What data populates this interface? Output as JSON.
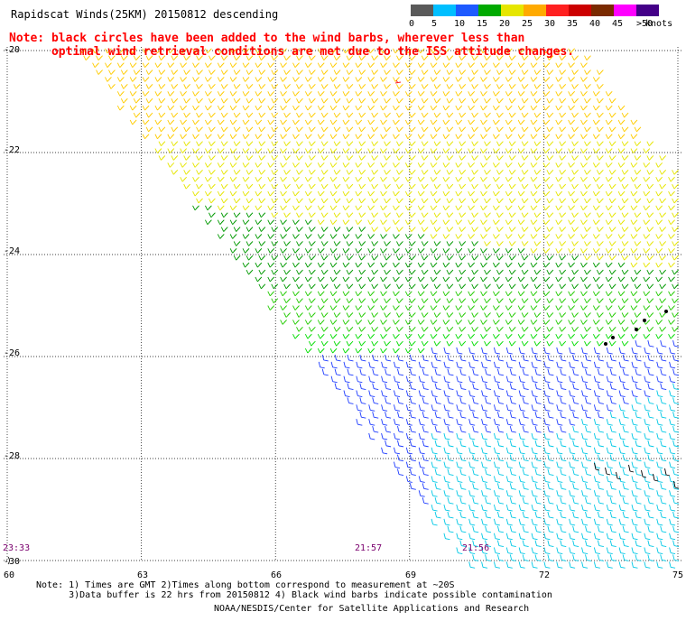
{
  "title": "Rapidscat Winds(25KM) 20150812 descending",
  "note": {
    "line1": "Note: black circles have been added to the wind barbs, wherever less than",
    "line2": "      optimal wind retrieval conditions are met due to the ISS attitude changes."
  },
  "legend": {
    "unit": "knots",
    "bins": [
      {
        "label": "0",
        "color": "#5a5a5a"
      },
      {
        "label": "5",
        "color": "#00bfff"
      },
      {
        "label": "10",
        "color": "#1e5aff"
      },
      {
        "label": "15",
        "color": "#00aa00"
      },
      {
        "label": "20",
        "color": "#e6e600"
      },
      {
        "label": "25",
        "color": "#ffaa00"
      },
      {
        "label": "30",
        "color": "#ff2020"
      },
      {
        "label": "35",
        "color": "#cc0000"
      },
      {
        "label": "40",
        "color": "#7a2a00"
      },
      {
        "label": "45",
        "color": "#ff00ff"
      },
      {
        "label": ">50",
        "color": "#440088"
      }
    ]
  },
  "axes": {
    "lat_labels": [
      "-20",
      "-22",
      "-24",
      "-26",
      "-28",
      "-30"
    ],
    "lon_labels": [
      "60",
      "63",
      "66",
      "69",
      "72",
      "75"
    ]
  },
  "times": [
    "23:33",
    "21:57",
    "21:56"
  ],
  "footer": {
    "line1": "Note: 1) Times are GMT 2)Times along bottom correspond to measurement at ~20S",
    "line2": "      3)Data buffer is 22 hrs from 20150812 4) Black wind barbs indicate possible contamination",
    "credit": "NOAA/NESDIS/Center for Satellite Applications and Research"
  }
}
